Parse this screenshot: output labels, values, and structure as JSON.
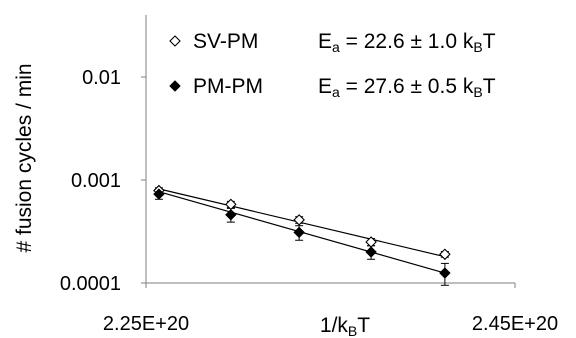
{
  "chart_data": {
    "type": "scatter",
    "xlabel": "1/kBT",
    "ylabel": "# fusion cycles / min",
    "x_scale": "linear",
    "y_scale": "log",
    "xlim": [
      2.25e+20,
      2.45e+20
    ],
    "ylim": [
      0.0001,
      0.04
    ],
    "x_ticks": [
      {
        "value": 2.25e+20,
        "label": "2.25E+20"
      },
      {
        "value": 2.45e+20,
        "label": "2.45E+20"
      }
    ],
    "y_ticks": [
      {
        "value": 0.0001,
        "label": "0.0001"
      },
      {
        "value": 0.001,
        "label": "0.001"
      },
      {
        "value": 0.01,
        "label": "0.01"
      }
    ],
    "grid": false,
    "legend_position": "top-left",
    "series": [
      {
        "name": "SV-PM",
        "marker": "open-diamond",
        "color": "#000000",
        "annotation": {
          "prefix": "E",
          "sub": "a",
          "text": " = 22.6 ± 1.0 k",
          "unit_sub": "B",
          "suffix": "T"
        },
        "x": [
          2.257e+20,
          2.296e+20,
          2.333e+20,
          2.372e+20,
          2.412e+20
        ],
        "y": [
          0.00079,
          0.00058,
          0.00041,
          0.00025,
          0.00019
        ],
        "err": [
          5e-05,
          4e-05,
          3e-05,
          2e-05,
          1.2e-05
        ],
        "fit": {
          "x": [
            2.257e+20,
            2.412e+20
          ],
          "y": [
            0.00082,
            0.00018
          ]
        }
      },
      {
        "name": "PM-PM",
        "marker": "filled-diamond",
        "color": "#000000",
        "annotation": {
          "prefix": "E",
          "sub": "a",
          "text": " = 27.6 ± 0.5 k",
          "unit_sub": "B",
          "suffix": "T"
        },
        "x": [
          2.257e+20,
          2.296e+20,
          2.333e+20,
          2.372e+20,
          2.412e+20
        ],
        "y": [
          0.00073,
          0.00046,
          0.00031,
          0.0002,
          0.000125
        ],
        "err": [
          8e-05,
          7e-05,
          5e-05,
          3e-05,
          3e-05
        ],
        "fit": {
          "x": [
            2.257e+20,
            2.412e+20
          ],
          "y": [
            0.00077,
            0.000125
          ]
        }
      }
    ]
  }
}
